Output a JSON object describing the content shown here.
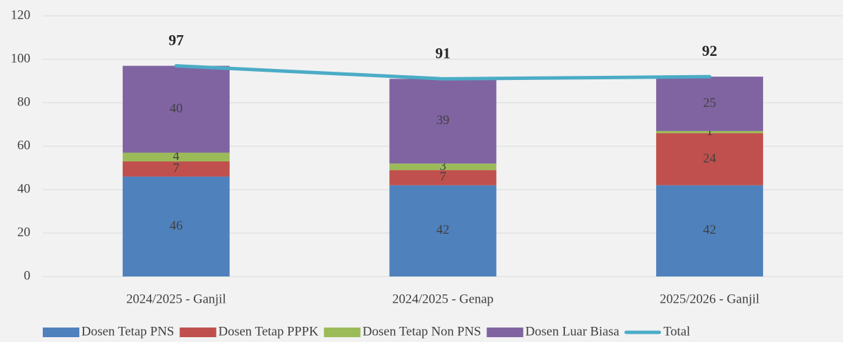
{
  "chart_data": {
    "type": "bar",
    "stacked": true,
    "categories": [
      "2024/2025 - Ganjil",
      "2024/2025 - Genap",
      "2025/2026 - Ganjil"
    ],
    "series": [
      {
        "name": "Dosen Tetap PNS",
        "color": "#4f81bd",
        "values": [
          46,
          42,
          42
        ]
      },
      {
        "name": "Dosen Tetap PPPK",
        "color": "#c0504d",
        "values": [
          7,
          7,
          24
        ]
      },
      {
        "name": "Dosen Tetap Non PNS",
        "color": "#9bbb59",
        "values": [
          4,
          3,
          1
        ]
      },
      {
        "name": "Dosen Luar Biasa",
        "color": "#8064a2",
        "values": [
          40,
          39,
          25
        ]
      },
      {
        "name": "Total",
        "color": "#4bacc6",
        "type": "line",
        "values": [
          97,
          91,
          92
        ]
      }
    ],
    "ylim": [
      0,
      120
    ],
    "yticks": [
      0,
      20,
      40,
      60,
      80,
      100,
      120
    ],
    "grid": true,
    "legend": "bottom"
  }
}
